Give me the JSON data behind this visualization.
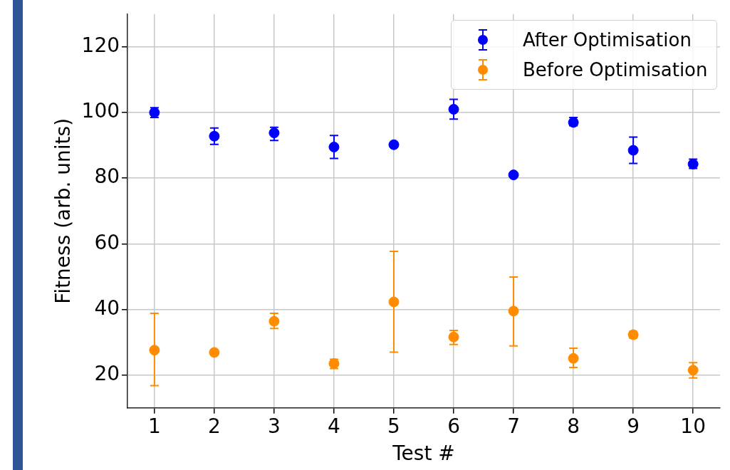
{
  "chart_data": {
    "type": "scatter",
    "xlabel": "Test #",
    "ylabel": "Fitness (arb. units)",
    "x": [
      1,
      2,
      3,
      4,
      5,
      6,
      7,
      8,
      9,
      10
    ],
    "xlim": [
      0.55,
      10.45
    ],
    "xticks": [
      1,
      2,
      3,
      4,
      5,
      6,
      7,
      8,
      9,
      10
    ],
    "ylim": [
      10,
      130
    ],
    "yticks": [
      20,
      40,
      60,
      80,
      100,
      120
    ],
    "grid": true,
    "legend": "top right",
    "marker": "circle",
    "series": [
      {
        "name": "After Optimisation",
        "color": "#0000ff",
        "values": [
          100,
          92.8,
          93.8,
          89.5,
          90.2,
          101,
          81,
          97,
          88.5,
          84.3
        ],
        "errors": [
          [
            98.5,
            101.5
          ],
          [
            90.3,
            95.3
          ],
          [
            91.5,
            95.5
          ],
          [
            86,
            93
          ],
          null,
          [
            98,
            104
          ],
          null,
          [
            96,
            98.5
          ],
          [
            84.5,
            92.5
          ],
          [
            83,
            85.8
          ]
        ]
      },
      {
        "name": "Before Optimisation",
        "color": "#ff8c00",
        "values": [
          27.6,
          26.9,
          36.4,
          23.5,
          42.3,
          31.6,
          39.5,
          25.1,
          32.3,
          21.5
        ],
        "errors": [
          [
            16.8,
            38.8
          ],
          null,
          [
            34.2,
            38.8
          ],
          [
            22,
            24.8
          ],
          [
            27,
            57.7
          ],
          [
            29.3,
            33.6
          ],
          [
            28.9,
            49.9
          ],
          [
            22.3,
            28.2
          ],
          [
            31.3,
            33.3
          ],
          [
            19.1,
            23.8
          ]
        ]
      }
    ]
  }
}
